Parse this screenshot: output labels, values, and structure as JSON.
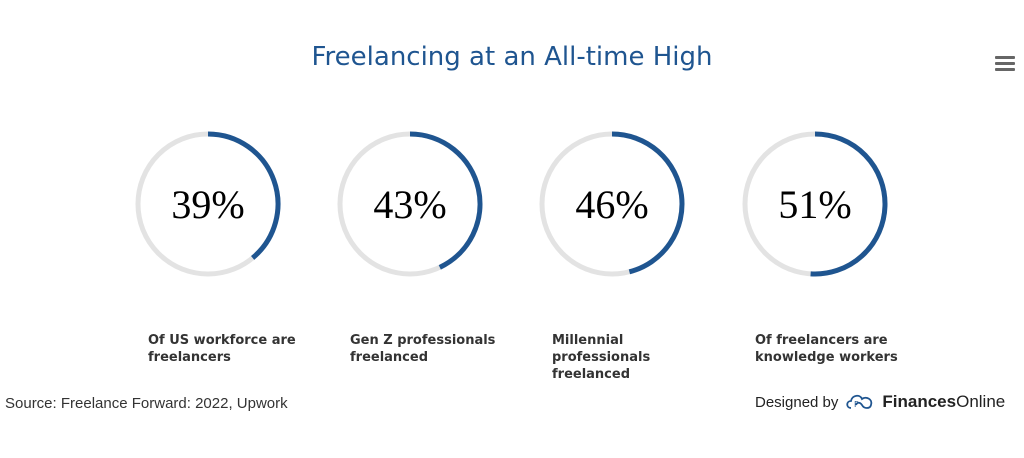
{
  "title": "Freelancing at an All-time High",
  "colors": {
    "accent": "#1f5590",
    "track": "#e3e3e3"
  },
  "chart_data": {
    "type": "donut-gauges",
    "title": "Freelancing at an All-time High",
    "items": [
      {
        "value": 39,
        "display": "39%",
        "label": "Of US workforce are freelancers"
      },
      {
        "value": 43,
        "display": "43%",
        "label": "Gen Z professionals freelanced"
      },
      {
        "value": 46,
        "display": "46%",
        "label": "Millennial professionals freelanced"
      },
      {
        "value": 51,
        "display": "51%",
        "label": "Of freelancers are knowledge workers"
      }
    ]
  },
  "source": "Source: Freelance Forward: 2022, Upwork",
  "credit": {
    "prefix": "Designed by",
    "brand_bold": "Finances",
    "brand_rest": "Online"
  },
  "menu_icon": "hamburger-icon"
}
